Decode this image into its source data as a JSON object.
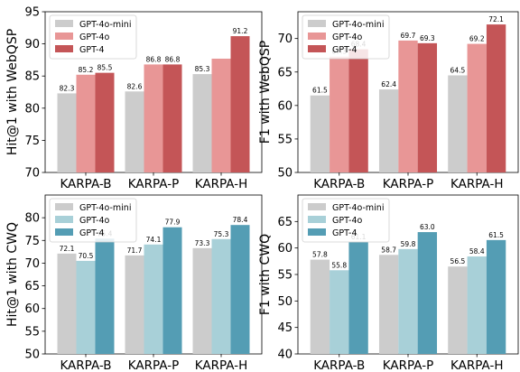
{
  "chart_data": [
    {
      "type": "bar",
      "ylabel": "Hit@1 with WebQSP",
      "categories": [
        "KARPA-B",
        "KARPA-P",
        "KARPA-H"
      ],
      "ylim": [
        70,
        95
      ],
      "yticks": [
        70,
        75,
        80,
        85,
        90,
        95
      ],
      "legend": "top-left",
      "series": [
        {
          "name": "GPT-4o-mini",
          "color": "#cccccc",
          "values": [
            82.3,
            82.6,
            85.3
          ]
        },
        {
          "name": "GPT-4o",
          "color": "#e89696",
          "values": [
            85.2,
            86.8,
            87.7
          ]
        },
        {
          "name": "GPT-4",
          "color": "#c45557",
          "values": [
            85.5,
            86.8,
            91.2
          ]
        }
      ],
      "data_labels": [
        [
          "82.3",
          "82.6",
          "85.3"
        ],
        [
          "85.2",
          "86.8",
          ""
        ],
        [
          "85.5",
          "86.8",
          "91.2"
        ]
      ]
    },
    {
      "type": "bar",
      "ylabel": "F1 with WebQSP",
      "categories": [
        "KARPA-B",
        "KARPA-P",
        "KARPA-H"
      ],
      "ylim": [
        50,
        74
      ],
      "yticks": [
        50,
        55,
        60,
        65,
        70
      ],
      "legend": "top-left",
      "series": [
        {
          "name": "GPT-4o-mini",
          "color": "#cccccc",
          "values": [
            61.5,
            62.4,
            64.5
          ]
        },
        {
          "name": "GPT-4o",
          "color": "#e89696",
          "values": [
            67.3,
            69.7,
            69.2
          ]
        },
        {
          "name": "GPT-4",
          "color": "#c45557",
          "values": [
            68.4,
            69.3,
            72.1
          ]
        }
      ],
      "data_labels": [
        [
          "61.5",
          "62.4",
          "64.5"
        ],
        [
          "67.3",
          "69.7",
          "69.2"
        ],
        [
          "68.4",
          "69.3",
          "72.1"
        ]
      ]
    },
    {
      "type": "bar",
      "ylabel": "Hit@1 with CWQ",
      "categories": [
        "KARPA-B",
        "KARPA-P",
        "KARPA-H"
      ],
      "ylim": [
        50,
        85
      ],
      "yticks": [
        50,
        55,
        60,
        65,
        70,
        75,
        80
      ],
      "legend": "top-left",
      "series": [
        {
          "name": "GPT-4o-mini",
          "color": "#cccccc",
          "values": [
            72.1,
            71.7,
            73.3
          ]
        },
        {
          "name": "GPT-4o",
          "color": "#a8d0d8",
          "values": [
            70.5,
            74.1,
            75.3
          ]
        },
        {
          "name": "GPT-4",
          "color": "#549db4",
          "values": [
            75.4,
            77.9,
            78.4
          ]
        }
      ],
      "data_labels": [
        [
          "72.1",
          "71.7",
          "73.3"
        ],
        [
          "70.5",
          "74.1",
          "75.3"
        ],
        [
          "75.4",
          "77.9",
          "78.4"
        ]
      ]
    },
    {
      "type": "bar",
      "ylabel": "F1 with CWQ",
      "categories": [
        "KARPA-B",
        "KARPA-P",
        "KARPA-H"
      ],
      "ylim": [
        40,
        70
      ],
      "yticks": [
        40,
        45,
        50,
        55,
        60,
        65
      ],
      "legend": "top-left",
      "series": [
        {
          "name": "GPT-4o-mini",
          "color": "#cccccc",
          "values": [
            57.8,
            58.7,
            56.5
          ]
        },
        {
          "name": "GPT-4o",
          "color": "#a8d0d8",
          "values": [
            55.8,
            59.8,
            58.4
          ]
        },
        {
          "name": "GPT-4",
          "color": "#549db4",
          "values": [
            61.1,
            63.0,
            61.5
          ]
        }
      ],
      "data_labels": [
        [
          "57.8",
          "58.7",
          "56.5"
        ],
        [
          "55.8",
          "59.8",
          "58.4"
        ],
        [
          "61.1",
          "63.0",
          "61.5"
        ]
      ]
    }
  ]
}
